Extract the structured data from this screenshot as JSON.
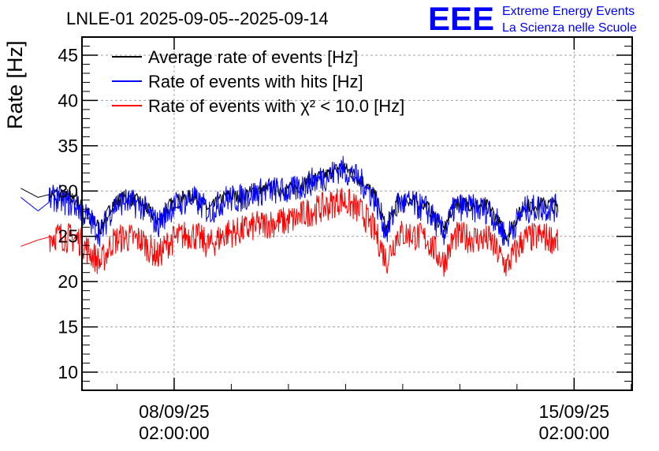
{
  "header": {
    "title": "LNLE-01 2025-09-05--2025-09-14",
    "logo": {
      "mark": "EEE",
      "line1": "Extreme Energy Events",
      "line2": "La Scienza nelle Scuole",
      "color": "#0000ff"
    }
  },
  "chart_data": {
    "type": "line",
    "title": "LNLE-01 2025-09-05--2025-09-14",
    "ylabel": "Rate [Hz]",
    "xlabel": "",
    "ylim": [
      8,
      47
    ],
    "yticks": [
      10,
      15,
      20,
      25,
      30,
      35,
      40,
      45
    ],
    "xlim_days": [
      6.47,
      16.1
    ],
    "xticks": [
      {
        "date": "08/09/25",
        "time": "02:00:00",
        "day": 8.0833
      },
      {
        "date": "15/09/25",
        "time": "02:00:00",
        "day": 15.0833
      }
    ],
    "grid": true,
    "legend_position": "top-left",
    "series": [
      {
        "name": "Average rate of events [Hz]",
        "color": "#000000",
        "x": [
          5.4,
          5.7,
          6.0,
          6.4,
          6.8,
          7.0,
          7.2,
          7.5,
          7.8,
          8.0,
          8.2,
          8.4,
          8.7,
          9.0,
          9.2,
          9.5,
          9.8,
          10.0,
          10.2,
          10.4,
          10.6,
          10.8,
          11.0,
          11.2,
          11.4,
          11.6,
          11.8,
          12.0,
          12.2,
          12.5,
          12.8,
          13.0,
          13.3,
          13.6,
          13.9,
          14.2,
          14.5,
          14.8
        ],
        "y": [
          30.3,
          29.3,
          29.8,
          28.8,
          25.8,
          28.6,
          29.3,
          28.8,
          26.7,
          28.4,
          29.1,
          29.5,
          28.0,
          29.5,
          29.4,
          30.0,
          30.3,
          30.2,
          30.3,
          31.0,
          31.5,
          31.9,
          32.7,
          32.0,
          31.0,
          29.4,
          25.8,
          29.0,
          29.0,
          28.4,
          25.7,
          28.7,
          28.5,
          28.3,
          25.1,
          28.3,
          28.6,
          28.5
        ]
      },
      {
        "name": "Rate of events with hits [Hz]",
        "color": "#0000ff",
        "x": [
          5.4,
          5.7,
          6.0,
          6.4,
          6.8,
          7.0,
          7.2,
          7.5,
          7.8,
          8.0,
          8.2,
          8.4,
          8.7,
          9.0,
          9.2,
          9.5,
          9.8,
          10.0,
          10.2,
          10.4,
          10.6,
          10.8,
          11.0,
          11.2,
          11.4,
          11.6,
          11.8,
          12.0,
          12.2,
          12.5,
          12.8,
          13.0,
          13.3,
          13.6,
          13.9,
          14.2,
          14.5,
          14.8
        ],
        "y": [
          29.3,
          27.8,
          29.3,
          28.3,
          25.3,
          28.2,
          28.9,
          28.4,
          26.3,
          28.0,
          28.7,
          29.2,
          27.7,
          29.2,
          29.1,
          29.8,
          30.1,
          30.0,
          30.1,
          30.8,
          31.3,
          31.7,
          32.5,
          31.8,
          30.7,
          29.1,
          25.5,
          28.6,
          28.6,
          28.0,
          25.3,
          28.3,
          28.1,
          27.9,
          24.8,
          27.9,
          28.2,
          28.1
        ]
      },
      {
        "name": "Rate of events with χ² < 10.0 [Hz]",
        "color": "#ff0000",
        "x": [
          5.4,
          5.7,
          6.0,
          6.4,
          6.8,
          7.0,
          7.2,
          7.5,
          7.8,
          8.0,
          8.2,
          8.4,
          8.7,
          9.0,
          9.2,
          9.5,
          9.8,
          10.0,
          10.2,
          10.4,
          10.6,
          10.8,
          11.0,
          11.2,
          11.4,
          11.6,
          11.8,
          12.0,
          12.2,
          12.5,
          12.8,
          13.0,
          13.3,
          13.6,
          13.9,
          14.2,
          14.5,
          14.8
        ],
        "y": [
          23.9,
          24.6,
          25.1,
          24.7,
          22.0,
          24.4,
          24.9,
          24.6,
          22.8,
          24.4,
          25.0,
          25.3,
          24.0,
          25.4,
          25.5,
          26.1,
          26.5,
          26.6,
          26.9,
          27.6,
          28.0,
          28.4,
          29.1,
          28.4,
          27.4,
          25.5,
          22.3,
          25.3,
          25.2,
          24.7,
          22.1,
          25.0,
          24.8,
          24.6,
          21.7,
          24.7,
          25.0,
          24.6
        ]
      }
    ]
  }
}
